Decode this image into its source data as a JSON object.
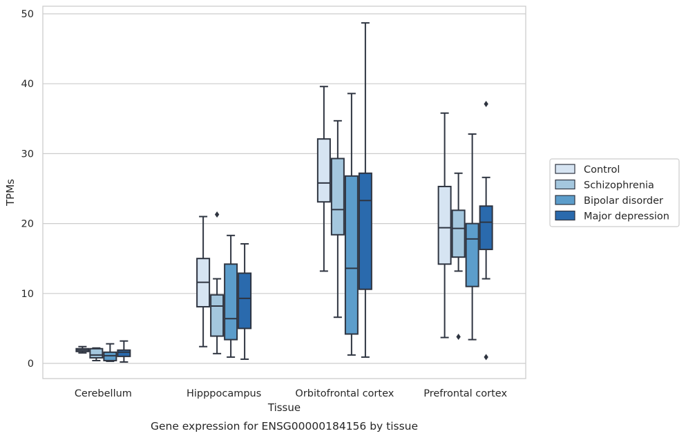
{
  "chart_data": {
    "type": "box",
    "xlabel": "Tissue",
    "ylabel": "TPMs",
    "caption": "Gene expression for ENSG00000184156 by tissue",
    "categories": [
      "Cerebellum",
      "Hipppocampus",
      "Orbitofrontal cortex",
      "Prefrontal cortex"
    ],
    "ylim": [
      -2.2,
      51.2
    ],
    "yticks": [
      0,
      10,
      20,
      30,
      40,
      50
    ],
    "grid": "horizontal",
    "legend_position": "right",
    "series": [
      {
        "name": "Control",
        "color": "#d6e4f2",
        "boxes": [
          {
            "whislo": 1.5,
            "q1": 1.7,
            "med": 1.9,
            "q3": 2.1,
            "whishi": 2.4,
            "fliers": []
          },
          {
            "whislo": 2.4,
            "q1": 8.1,
            "med": 11.6,
            "q3": 15.0,
            "whishi": 21.0,
            "fliers": []
          },
          {
            "whislo": 13.2,
            "q1": 23.1,
            "med": 25.8,
            "q3": 32.1,
            "whishi": 39.6,
            "fliers": []
          },
          {
            "whislo": 3.7,
            "q1": 14.2,
            "med": 19.4,
            "q3": 25.3,
            "whishi": 35.8,
            "fliers": []
          }
        ]
      },
      {
        "name": "Schizophrenia",
        "color": "#a4c7de",
        "boxes": [
          {
            "whislo": 0.4,
            "q1": 0.8,
            "med": 1.2,
            "q3": 2.1,
            "whishi": 2.2,
            "fliers": []
          },
          {
            "whislo": 1.4,
            "q1": 3.9,
            "med": 8.2,
            "q3": 9.8,
            "whishi": 12.1,
            "fliers": [
              21.3
            ]
          },
          {
            "whislo": 6.6,
            "q1": 18.4,
            "med": 22.0,
            "q3": 29.3,
            "whishi": 34.7,
            "fliers": []
          },
          {
            "whislo": 13.2,
            "q1": 15.2,
            "med": 19.3,
            "q3": 21.9,
            "whishi": 27.2,
            "fliers": [
              3.8
            ]
          }
        ]
      },
      {
        "name": "Bipolar disorder",
        "color": "#5c9dcb",
        "boxes": [
          {
            "whislo": 0.3,
            "q1": 0.4,
            "med": 1.1,
            "q3": 1.6,
            "whishi": 2.8,
            "fliers": []
          },
          {
            "whislo": 0.9,
            "q1": 3.4,
            "med": 6.4,
            "q3": 14.2,
            "whishi": 18.3,
            "fliers": []
          },
          {
            "whislo": 1.2,
            "q1": 4.2,
            "med": 13.6,
            "q3": 26.8,
            "whishi": 38.6,
            "fliers": []
          },
          {
            "whislo": 3.4,
            "q1": 11.0,
            "med": 17.8,
            "q3": 20.0,
            "whishi": 32.8,
            "fliers": []
          }
        ]
      },
      {
        "name": "Major depression",
        "color": "#2a6aad",
        "boxes": [
          {
            "whislo": 0.2,
            "q1": 1.0,
            "med": 1.6,
            "q3": 1.9,
            "whishi": 3.2,
            "fliers": []
          },
          {
            "whislo": 0.6,
            "q1": 5.0,
            "med": 9.3,
            "q3": 12.9,
            "whishi": 17.1,
            "fliers": []
          },
          {
            "whislo": 0.9,
            "q1": 10.6,
            "med": 23.3,
            "q3": 27.2,
            "whishi": 48.7,
            "fliers": []
          },
          {
            "whislo": 12.1,
            "q1": 16.3,
            "med": 20.2,
            "q3": 22.5,
            "whishi": 26.6,
            "fliers": [
              37.1,
              0.9
            ]
          }
        ]
      }
    ]
  }
}
